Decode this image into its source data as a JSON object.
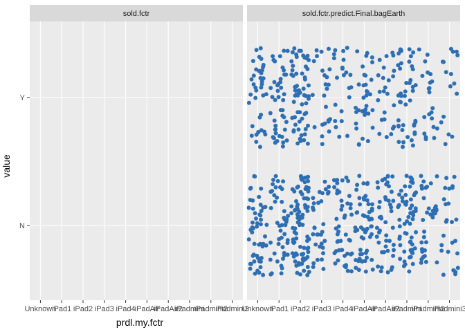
{
  "chart_data": {
    "type": "scatter",
    "jitter": true,
    "xlabel": "prdl.my.fctr",
    "ylabel": "value",
    "x_categories": [
      "Unknown",
      "iPad1",
      "iPad2",
      "iPad3",
      "iPad4",
      "iPadAir",
      "iPadAir2",
      "iPadmini",
      "iPadmini2",
      "iPadmini3"
    ],
    "y_categories": [
      "N",
      "Y"
    ],
    "grid": true,
    "point_color": "#2e6fb3",
    "panel_bg": "#ebebeb",
    "strip_bg": "#d9d9d9",
    "panels": [
      {
        "strip": "sold.fctr",
        "points": []
      },
      {
        "strip": "sold.fctr.predict.Final.bagEarth",
        "points": [
          {
            "x": "Unknown",
            "y": "Y",
            "n": 38
          },
          {
            "x": "Unknown",
            "y": "N",
            "n": 52
          },
          {
            "x": "iPad1",
            "y": "Y",
            "n": 44
          },
          {
            "x": "iPad1",
            "y": "N",
            "n": 46
          },
          {
            "x": "iPad2",
            "y": "Y",
            "n": 62
          },
          {
            "x": "iPad2",
            "y": "N",
            "n": 88
          },
          {
            "x": "iPad3",
            "y": "Y",
            "n": 24
          },
          {
            "x": "iPad3",
            "y": "N",
            "n": 32
          },
          {
            "x": "iPad4",
            "y": "Y",
            "n": 22
          },
          {
            "x": "iPad4",
            "y": "N",
            "n": 46
          },
          {
            "x": "iPadAir",
            "y": "Y",
            "n": 34
          },
          {
            "x": "iPadAir",
            "y": "N",
            "n": 56
          },
          {
            "x": "iPadAir2",
            "y": "Y",
            "n": 24
          },
          {
            "x": "iPadAir2",
            "y": "N",
            "n": 46
          },
          {
            "x": "iPadmini",
            "y": "Y",
            "n": 46
          },
          {
            "x": "iPadmini",
            "y": "N",
            "n": 60
          },
          {
            "x": "iPadmini2",
            "y": "Y",
            "n": 22
          },
          {
            "x": "iPadmini2",
            "y": "N",
            "n": 34
          },
          {
            "x": "iPadmini3",
            "y": "Y",
            "n": 16
          },
          {
            "x": "iPadmini3",
            "y": "N",
            "n": 26
          }
        ]
      }
    ]
  }
}
